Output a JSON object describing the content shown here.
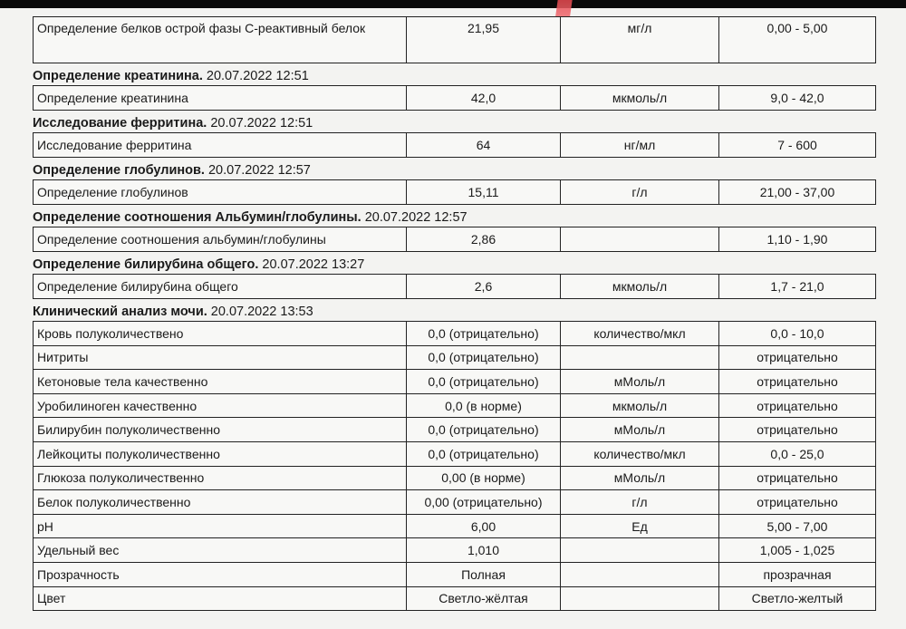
{
  "sections": [
    {
      "title": "",
      "date": "",
      "rows": [
        {
          "name": "Определение белков острой фазы С-реактивный белок",
          "value": "21,95",
          "unit": "мг/л",
          "ref": "0,00 - 5,00"
        }
      ]
    },
    {
      "title": "Определение креатинина.",
      "date": "20.07.2022 12:51",
      "rows": [
        {
          "name": "Определение креатинина",
          "value": "42,0",
          "unit": "мкмоль/л",
          "ref": "9,0 - 42,0"
        }
      ]
    },
    {
      "title": "Исследование ферритина.",
      "date": "20.07.2022 12:51",
      "rows": [
        {
          "name": "Исследование ферритина",
          "value": "64",
          "unit": "нг/мл",
          "ref": "7 - 600"
        }
      ]
    },
    {
      "title": "Определение глобулинов.",
      "date": "20.07.2022 12:57",
      "rows": [
        {
          "name": "Определение глобулинов",
          "value": "15,11",
          "unit": "г/л",
          "ref": "21,00 - 37,00"
        }
      ]
    },
    {
      "title": "Определение соотношения Альбумин/глобулины.",
      "date": "20.07.2022 12:57",
      "rows": [
        {
          "name": "Определение соотношения альбумин/глобулины",
          "value": "2,86",
          "unit": "",
          "ref": "1,10 - 1,90"
        }
      ]
    },
    {
      "title": "Определение билирубина общего.",
      "date": "20.07.2022 13:27",
      "rows": [
        {
          "name": "Определение билирубина общего",
          "value": "2,6",
          "unit": "мкмоль/л",
          "ref": "1,7 - 21,0"
        }
      ]
    },
    {
      "title": "Клинический анализ мочи.",
      "date": "20.07.2022 13:53",
      "rows": [
        {
          "name": "Кровь полуколичествено",
          "value": "0,0 (отрицательно)",
          "unit": "количество/мкл",
          "ref": "0,0 - 10,0"
        },
        {
          "name": "Нитриты",
          "value": "0,0 (отрицательно)",
          "unit": "",
          "ref": "отрицательно"
        },
        {
          "name": "Кетоновые тела качественно",
          "value": "0,0 (отрицательно)",
          "unit": "мМоль/л",
          "ref": "отрицательно"
        },
        {
          "name": "Уробилиноген качественно",
          "value": "0,0 (в норме)",
          "unit": "мкмоль/л",
          "ref": "отрицательно"
        },
        {
          "name": "Билирубин полуколичественно",
          "value": "0,0 (отрицательно)",
          "unit": "мМоль/л",
          "ref": "отрицательно"
        },
        {
          "name": "Лейкоциты полуколичественно",
          "value": "0,0 (отрицательно)",
          "unit": "количество/мкл",
          "ref": "0,0 - 25,0"
        },
        {
          "name": "Глюкоза полуколичественно",
          "value": "0,00 (в норме)",
          "unit": "мМоль/л",
          "ref": "отрицательно"
        },
        {
          "name": "Белок полуколичественно",
          "value": "0,00 (отрицательно)",
          "unit": "г/л",
          "ref": "отрицательно"
        },
        {
          "name": "pH",
          "value": "6,00",
          "unit": "Ед",
          "ref": "5,00 - 7,00"
        },
        {
          "name": "Удельный вес",
          "value": "1,010",
          "unit": "",
          "ref": "1,005 - 1,025"
        },
        {
          "name": "Прозрачность",
          "value": "Полная",
          "unit": "",
          "ref": "прозрачная"
        },
        {
          "name": "Цвет",
          "value": "Светло-жёлтая",
          "unit": "",
          "ref": "Светло-желтый"
        }
      ]
    }
  ]
}
